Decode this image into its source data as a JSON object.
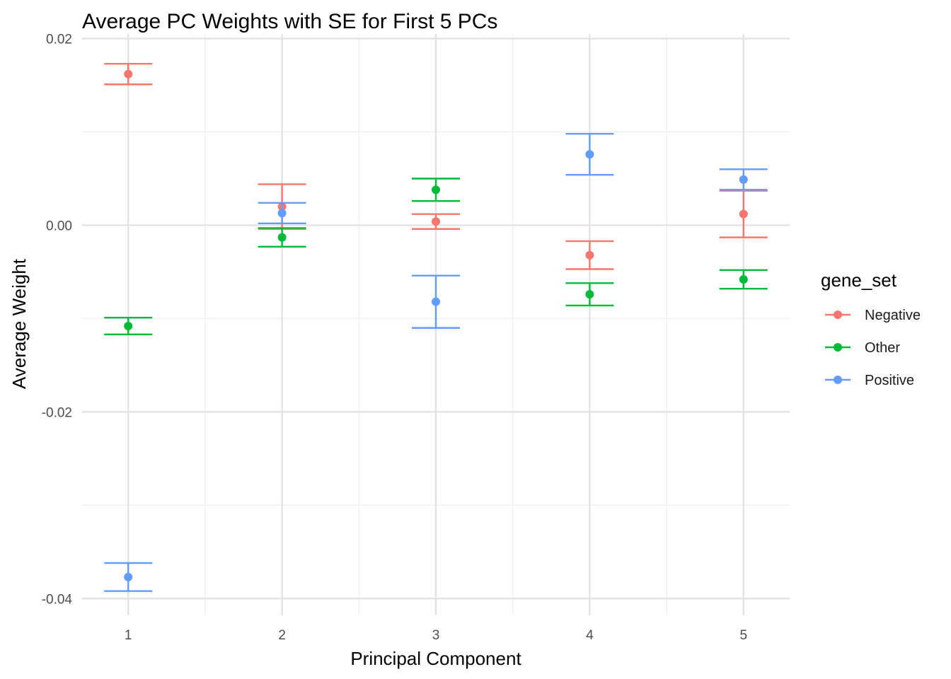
{
  "chart_data": {
    "type": "scatter",
    "title": "Average PC Weights with SE for First 5 PCs",
    "xlabel": "Principal Component",
    "ylabel": "Average Weight",
    "x": [
      1,
      2,
      3,
      4,
      5
    ],
    "x_tick_labels": [
      "1",
      "2",
      "3",
      "4",
      "5"
    ],
    "xlim": [
      0.7,
      5.3
    ],
    "ylim": [
      -0.0418,
      0.0205
    ],
    "y_ticks": [
      0.02,
      0.0,
      -0.02,
      -0.04
    ],
    "y_tick_labels": [
      "0.02",
      "0.00",
      "-0.02",
      "-0.04"
    ],
    "y_minor_ticks": [
      0.01,
      -0.01,
      -0.03
    ],
    "grid": true,
    "error_bars": true,
    "legend": {
      "title": "gene_set",
      "position": "right"
    },
    "series": [
      {
        "name": "Negative",
        "color": "#F8766D",
        "values": [
          0.0162,
          0.002,
          0.0004,
          -0.0032,
          0.0012
        ],
        "se": [
          0.0011,
          0.0024,
          0.0008,
          0.0015,
          0.0025
        ]
      },
      {
        "name": "Other",
        "color": "#00BA38",
        "values": [
          -0.0108,
          -0.0013,
          0.0038,
          -0.0074,
          -0.0058
        ],
        "se": [
          0.0009,
          0.001,
          0.0012,
          0.0012,
          0.001
        ]
      },
      {
        "name": "Positive",
        "color": "#619CFF",
        "values": [
          -0.0377,
          0.0013,
          -0.0082,
          0.0076,
          0.0049
        ],
        "se": [
          0.0015,
          0.0011,
          0.0028,
          0.0022,
          0.0011
        ]
      }
    ]
  }
}
